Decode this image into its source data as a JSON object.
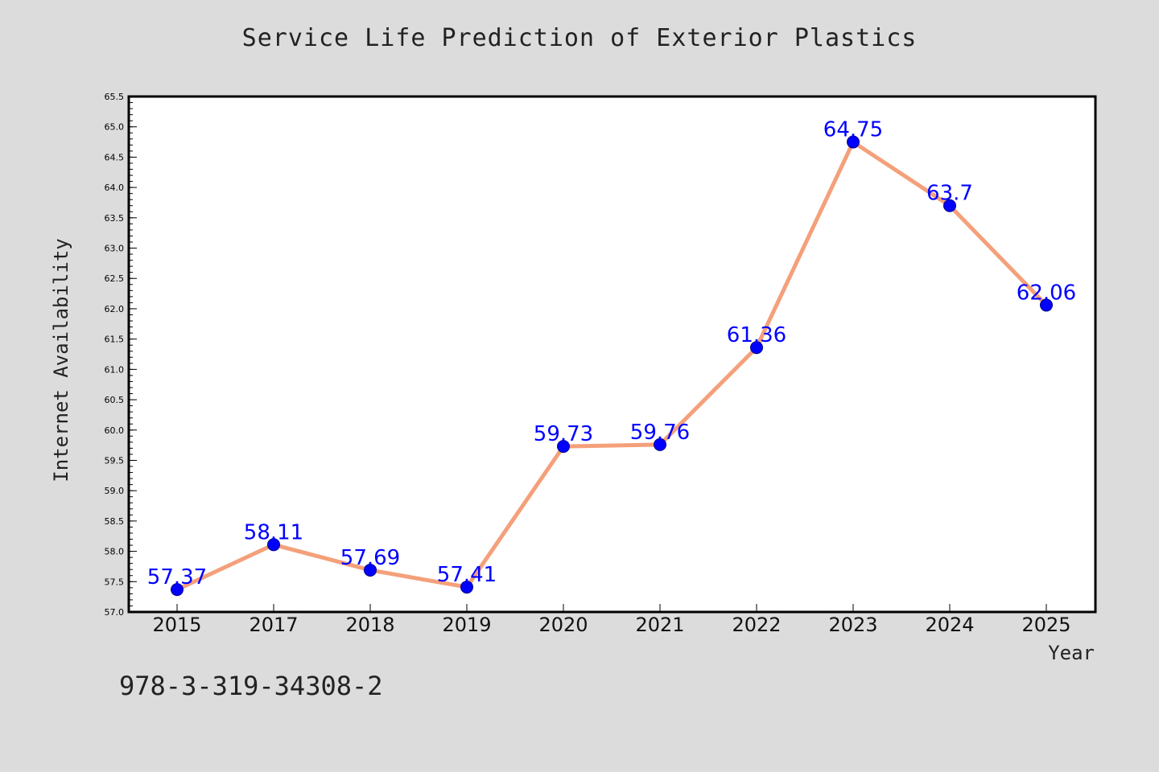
{
  "chart_data": {
    "type": "line",
    "title": "Service Life Prediction of Exterior Plastics",
    "xlabel": "Year",
    "ylabel": "Internet Availability",
    "categories": [
      "2015",
      "2017",
      "2018",
      "2019",
      "2020",
      "2021",
      "2022",
      "2023",
      "2024",
      "2025"
    ],
    "series": [
      {
        "values": [
          57.37,
          58.11,
          57.69,
          57.41,
          59.73,
          59.76,
          61.36,
          64.75,
          63.7,
          62.06
        ],
        "data_labels": [
          "57.37",
          "58.11",
          "57.69",
          "57.41",
          "59.73",
          "59.76",
          "61.36",
          "64.75",
          "63.7",
          "62.06"
        ],
        "line_color": "#f4a07a",
        "marker_color": "#0000ff"
      }
    ],
    "ylim": [
      57.0,
      65.5
    ],
    "yticks": [
      "57.0",
      "57.5",
      "58.0",
      "58.5",
      "59.0",
      "59.5",
      "60.0",
      "60.5",
      "61.0",
      "61.5",
      "62.0",
      "62.5",
      "63.0",
      "63.5",
      "64.0",
      "64.5",
      "65.0",
      "65.5"
    ],
    "grid": false,
    "legend": "none"
  },
  "footnote": "978-3-319-34308-2",
  "colors": {
    "background": "#dcdcdc",
    "plot_area": "#ffffff",
    "label_color": "#0000ff"
  }
}
